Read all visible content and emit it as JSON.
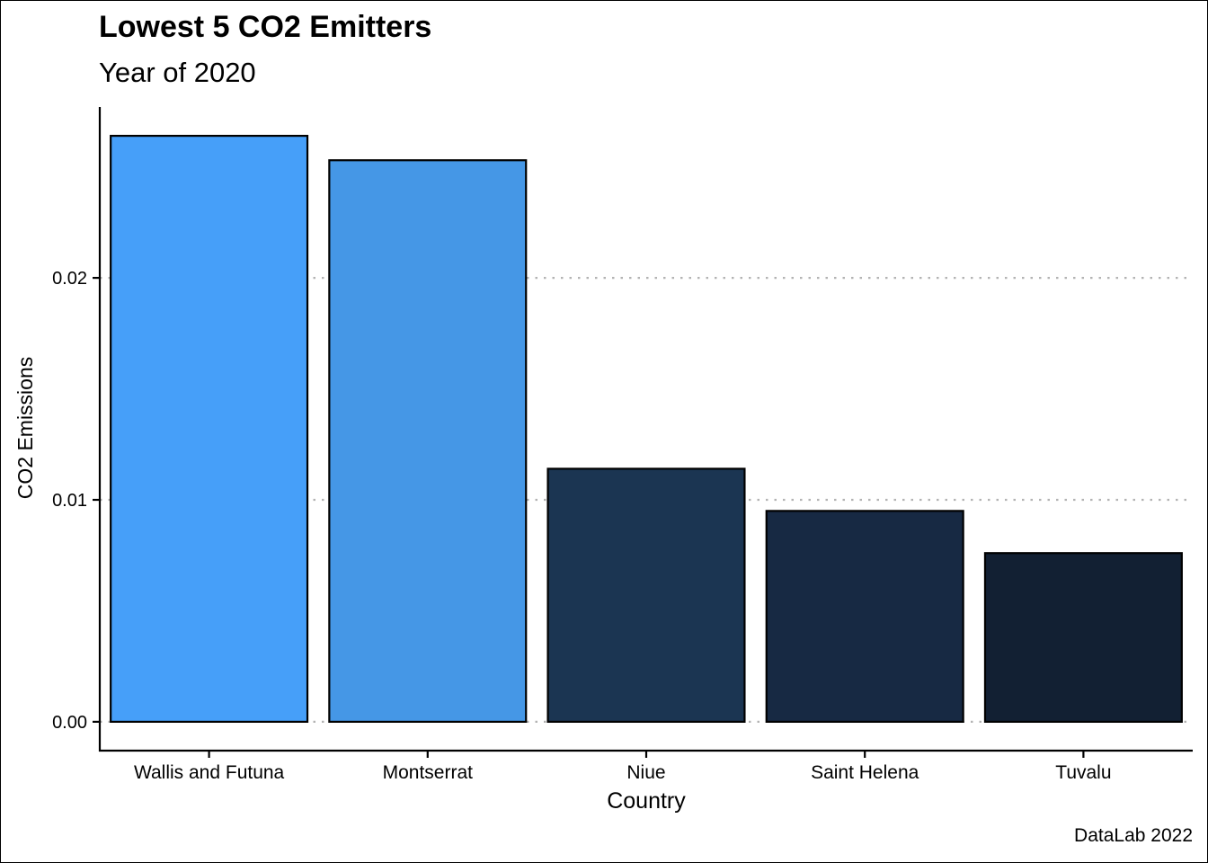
{
  "chart_data": {
    "type": "bar",
    "title": "Lowest 5 CO2 Emitters",
    "subtitle": "Year of 2020",
    "caption": "DataLab 2022",
    "xlabel": "Country",
    "ylabel": "CO2 Emissions",
    "categories": [
      "Wallis and Futuna",
      "Montserrat",
      "Niue",
      "Saint Helena",
      "Tuvalu"
    ],
    "values": [
      0.0264,
      0.0253,
      0.0114,
      0.0095,
      0.0076
    ],
    "bar_colors": [
      "#469FF9",
      "#4597E6",
      "#1B3552",
      "#172943",
      "#122033"
    ],
    "ylim": [
      -0.0013,
      0.0277
    ],
    "yticks": [
      0.0,
      0.01,
      0.02
    ],
    "ytick_labels": [
      "0.00",
      "0.01",
      "0.02"
    ],
    "grid": "horizontal dotted",
    "legend": "none"
  }
}
